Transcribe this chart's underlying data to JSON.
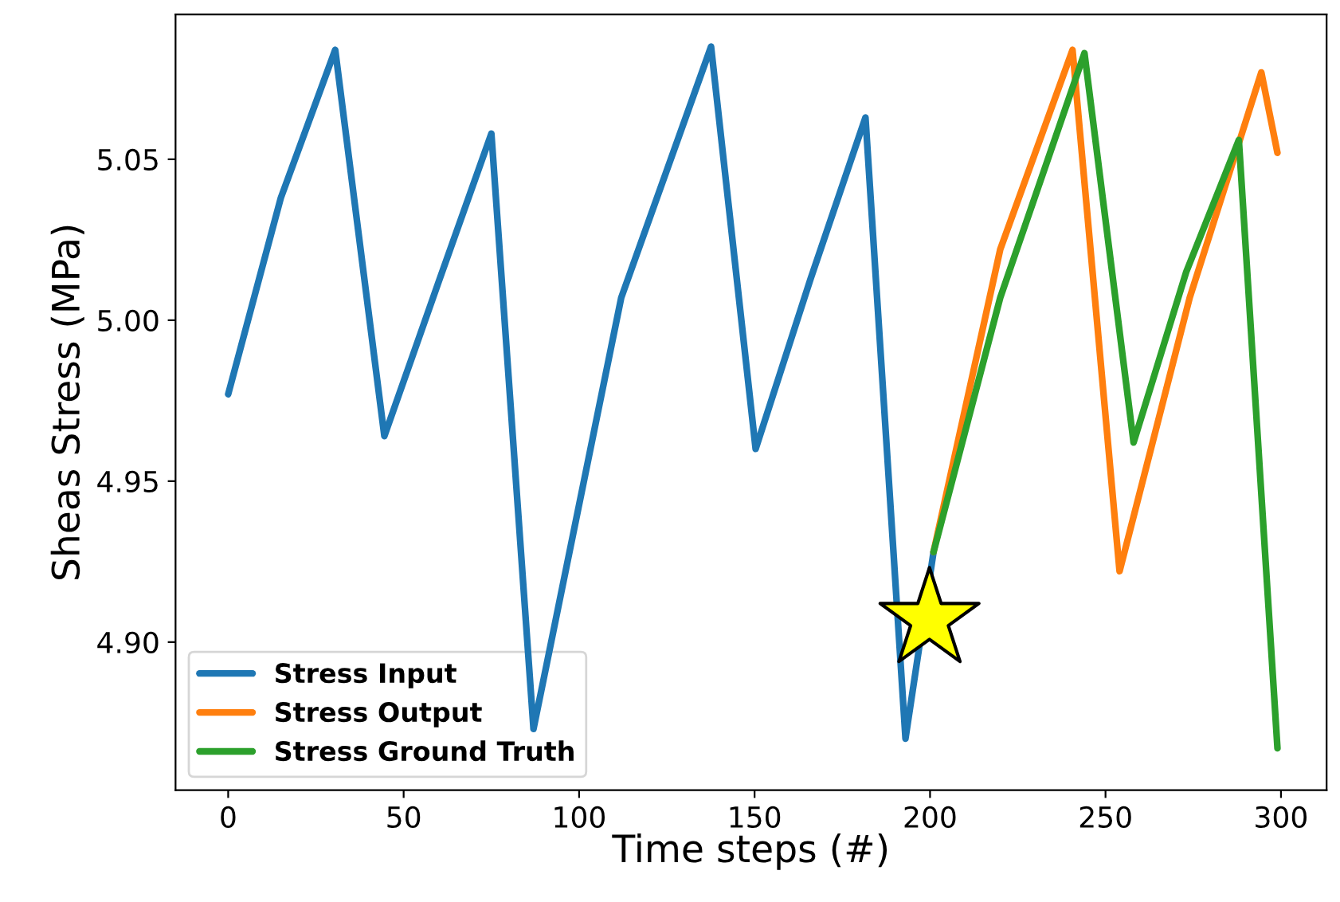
{
  "chart_data": {
    "type": "line",
    "xlabel": "Time steps (#)",
    "ylabel": "Sheas Stress (MPa)",
    "xlim": [
      -15,
      313
    ],
    "xticks": [
      0,
      50,
      100,
      150,
      200,
      250,
      300
    ],
    "ylim": [
      4.854,
      5.095
    ],
    "yticks": [
      {
        "value": 4.9,
        "label": "4.90"
      },
      {
        "value": 4.95,
        "label": "4.95"
      },
      {
        "value": 5.0,
        "label": "5.00"
      },
      {
        "value": 5.05,
        "label": "5.05"
      }
    ],
    "legend": "bottom left",
    "grid": false,
    "series": [
      {
        "name": "Stress Input",
        "color": "#1f77b4",
        "x": [
          0,
          15,
          30.5,
          44.5,
          60,
          75,
          87,
          112,
          137.6,
          150.3,
          166,
          181.6,
          193,
          201
        ],
        "values": [
          4.977,
          5.038,
          5.084,
          4.964,
          5.012,
          5.058,
          4.873,
          5.007,
          5.085,
          4.96,
          5.013,
          5.063,
          4.87,
          4.928
        ]
      },
      {
        "name": "Stress Output",
        "color": "#ff7f0e",
        "x": [
          201,
          220,
          240.6,
          254,
          274,
          294.4,
          299
        ],
        "values": [
          4.928,
          5.022,
          5.084,
          4.922,
          5.007,
          5.077,
          5.052
        ]
      },
      {
        "name": "Stress Ground Truth",
        "color": "#2ca02c",
        "x": [
          201,
          220,
          244,
          258,
          273,
          288,
          299
        ],
        "values": [
          4.928,
          5.007,
          5.083,
          4.962,
          5.015,
          5.056,
          4.867
        ]
      }
    ]
  }
}
